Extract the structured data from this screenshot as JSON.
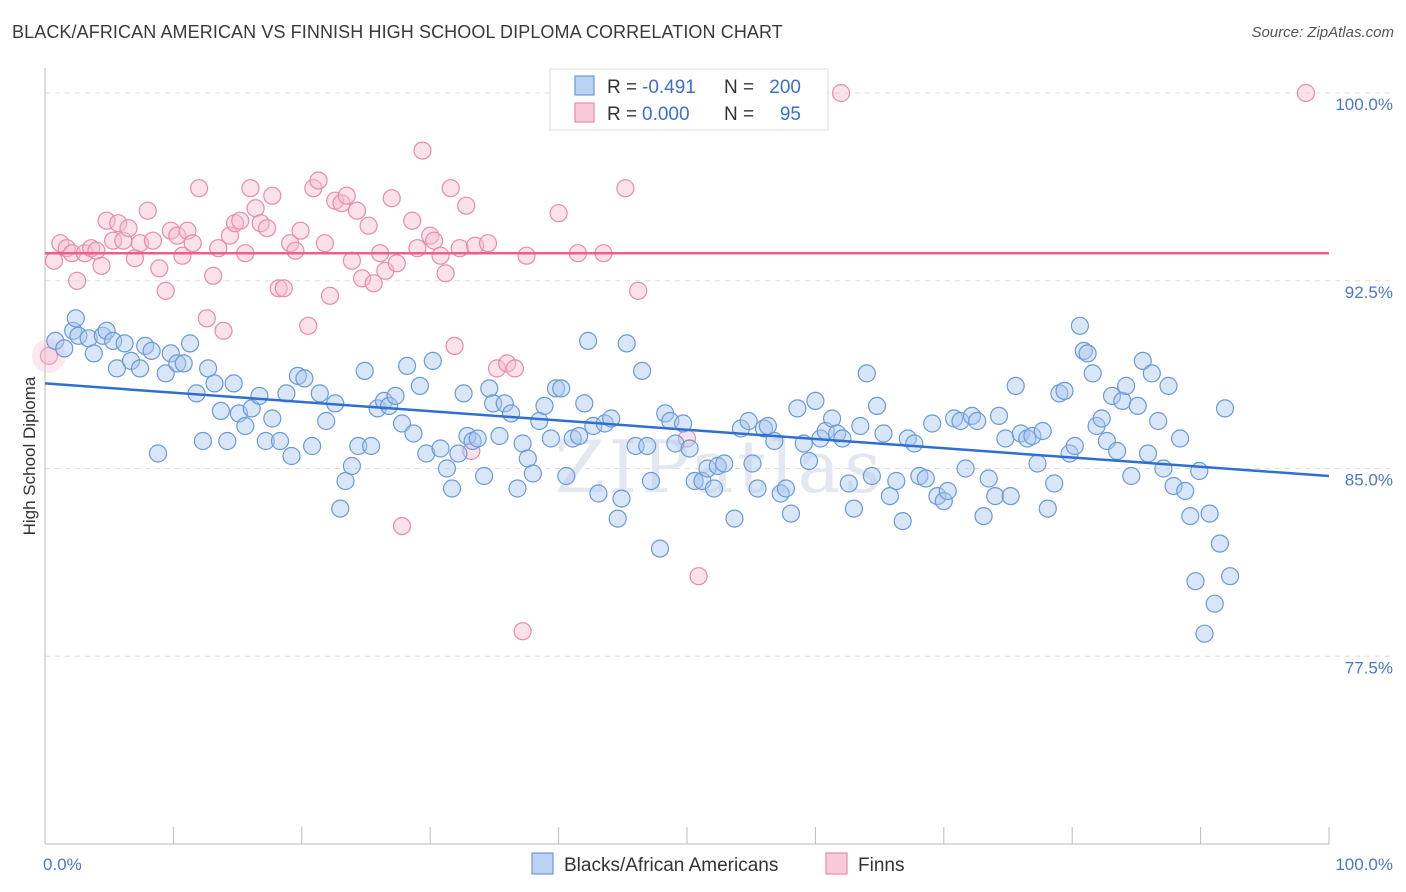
{
  "title": "BLACK/AFRICAN AMERICAN VS FINNISH HIGH SCHOOL DIPLOMA CORRELATION CHART",
  "source": "Source: ZipAtlas.com",
  "colors": {
    "blue_fill": "#a9c8f0",
    "blue_stroke": "#6a9ad8",
    "blue_line": "#2f6fd0",
    "pink_fill": "#f6bcd0",
    "pink_stroke": "#e98aab",
    "pink_line": "#e8608e",
    "grid": "#dddddd",
    "tick_label": "#4a78c8"
  },
  "chart_data": {
    "type": "scatter",
    "title": "BLACK/AFRICAN AMERICAN VS FINNISH HIGH SCHOOL DIPLOMA CORRELATION CHART",
    "xlabel": "",
    "ylabel": "High School Diploma",
    "xlim": [
      0,
      100
    ],
    "ylim": [
      70.0,
      101.0
    ],
    "x_tick_labels": [
      "0.0%",
      "100.0%"
    ],
    "y_ticks": [
      77.5,
      85.0,
      92.5,
      100.0
    ],
    "y_tick_labels": [
      "77.5%",
      "85.0%",
      "92.5%",
      "100.0%"
    ],
    "grid": true,
    "legend_position": "top-center",
    "legend": [
      {
        "name": "Blacks/African Americans",
        "r_label": "R =",
        "r_value": "-0.491",
        "n_label": "N =",
        "n_value": "200"
      },
      {
        "name": "Finns",
        "r_label": "R =",
        "r_value": "0.000",
        "n_label": "N =",
        "n_value": "95"
      }
    ],
    "series": [
      {
        "name": "Blacks/African Americans",
        "trend": {
          "x": [
            0,
            100
          ],
          "y": [
            88.4,
            84.7
          ]
        },
        "points": [
          [
            0.8,
            90.1
          ],
          [
            1.5,
            89.8
          ],
          [
            2.2,
            90.5
          ],
          [
            2.4,
            91.0
          ],
          [
            2.6,
            90.3
          ],
          [
            3.4,
            90.2
          ],
          [
            3.8,
            89.6
          ],
          [
            4.5,
            90.3
          ],
          [
            4.8,
            90.5
          ],
          [
            5.3,
            90.1
          ],
          [
            5.6,
            89.0
          ],
          [
            6.2,
            90.0
          ],
          [
            6.7,
            89.3
          ],
          [
            7.4,
            89.0
          ],
          [
            7.8,
            89.9
          ],
          [
            8.3,
            89.7
          ],
          [
            8.8,
            85.6
          ],
          [
            9.4,
            88.8
          ],
          [
            9.8,
            89.6
          ],
          [
            10.3,
            89.2
          ],
          [
            10.8,
            89.2
          ],
          [
            11.3,
            90.0
          ],
          [
            11.8,
            88.0
          ],
          [
            12.3,
            86.1
          ],
          [
            12.7,
            89.0
          ],
          [
            13.2,
            88.4
          ],
          [
            13.7,
            87.3
          ],
          [
            14.2,
            86.1
          ],
          [
            14.7,
            88.4
          ],
          [
            15.1,
            87.2
          ],
          [
            15.6,
            86.7
          ],
          [
            16.1,
            87.4
          ],
          [
            16.7,
            87.9
          ],
          [
            17.2,
            86.1
          ],
          [
            17.7,
            87.0
          ],
          [
            18.3,
            86.1
          ],
          [
            18.8,
            88.0
          ],
          [
            19.2,
            85.5
          ],
          [
            19.7,
            88.7
          ],
          [
            20.2,
            88.6
          ],
          [
            20.8,
            85.9
          ],
          [
            21.4,
            88.0
          ],
          [
            21.9,
            86.9
          ],
          [
            22.6,
            87.6
          ],
          [
            23.0,
            83.4
          ],
          [
            23.4,
            84.5
          ],
          [
            23.9,
            85.1
          ],
          [
            24.4,
            85.9
          ],
          [
            24.9,
            88.9
          ],
          [
            25.4,
            85.9
          ],
          [
            25.9,
            87.4
          ],
          [
            26.4,
            87.7
          ],
          [
            26.8,
            87.5
          ],
          [
            27.3,
            87.9
          ],
          [
            27.8,
            86.8
          ],
          [
            28.2,
            89.1
          ],
          [
            28.7,
            86.4
          ],
          [
            29.2,
            88.3
          ],
          [
            29.7,
            85.6
          ],
          [
            30.2,
            89.3
          ],
          [
            30.8,
            85.8
          ],
          [
            31.3,
            85.0
          ],
          [
            31.7,
            84.2
          ],
          [
            32.2,
            85.6
          ],
          [
            32.6,
            88.0
          ],
          [
            32.9,
            86.3
          ],
          [
            33.3,
            86.1
          ],
          [
            33.7,
            86.2
          ],
          [
            34.2,
            84.7
          ],
          [
            34.6,
            88.2
          ],
          [
            34.9,
            87.6
          ],
          [
            35.4,
            86.3
          ],
          [
            35.8,
            87.6
          ],
          [
            36.3,
            87.2
          ],
          [
            36.8,
            84.2
          ],
          [
            37.2,
            86.0
          ],
          [
            37.6,
            85.4
          ],
          [
            38.0,
            84.8
          ],
          [
            38.5,
            86.9
          ],
          [
            38.9,
            87.5
          ],
          [
            39.4,
            86.2
          ],
          [
            39.8,
            88.2
          ],
          [
            40.2,
            88.2
          ],
          [
            40.6,
            84.7
          ],
          [
            41.1,
            86.2
          ],
          [
            41.6,
            86.3
          ],
          [
            42.0,
            87.6
          ],
          [
            42.3,
            90.1
          ],
          [
            42.7,
            86.7
          ],
          [
            43.1,
            84.0
          ],
          [
            43.6,
            86.8
          ],
          [
            44.1,
            87.0
          ],
          [
            44.6,
            83.0
          ],
          [
            44.9,
            83.8
          ],
          [
            45.3,
            90.0
          ],
          [
            46.0,
            85.9
          ],
          [
            46.5,
            88.9
          ],
          [
            46.9,
            85.9
          ],
          [
            47.2,
            84.5
          ],
          [
            47.9,
            81.8
          ],
          [
            48.3,
            87.2
          ],
          [
            48.7,
            86.9
          ],
          [
            49.1,
            86.0
          ],
          [
            49.7,
            86.8
          ],
          [
            50.2,
            85.8
          ],
          [
            50.6,
            84.5
          ],
          [
            51.2,
            84.5
          ],
          [
            51.6,
            85.0
          ],
          [
            52.1,
            84.2
          ],
          [
            52.4,
            85.1
          ],
          [
            52.9,
            85.2
          ],
          [
            53.7,
            83.0
          ],
          [
            54.2,
            86.6
          ],
          [
            54.8,
            86.9
          ],
          [
            55.1,
            85.2
          ],
          [
            55.5,
            84.2
          ],
          [
            56.0,
            86.6
          ],
          [
            56.3,
            86.7
          ],
          [
            56.8,
            86.1
          ],
          [
            57.3,
            84.0
          ],
          [
            57.7,
            84.2
          ],
          [
            58.1,
            83.2
          ],
          [
            58.6,
            87.4
          ],
          [
            59.1,
            86.0
          ],
          [
            59.5,
            85.3
          ],
          [
            60.0,
            87.7
          ],
          [
            60.4,
            86.2
          ],
          [
            60.8,
            86.5
          ],
          [
            61.3,
            87.0
          ],
          [
            61.7,
            86.4
          ],
          [
            62.1,
            86.2
          ],
          [
            62.6,
            84.4
          ],
          [
            63.0,
            83.4
          ],
          [
            63.5,
            86.7
          ],
          [
            64.0,
            88.8
          ],
          [
            64.4,
            84.7
          ],
          [
            64.8,
            87.5
          ],
          [
            65.3,
            86.4
          ],
          [
            65.8,
            83.9
          ],
          [
            66.3,
            84.5
          ],
          [
            66.8,
            82.9
          ],
          [
            67.2,
            86.2
          ],
          [
            67.7,
            86.0
          ],
          [
            68.1,
            84.7
          ],
          [
            68.6,
            84.6
          ],
          [
            69.1,
            86.8
          ],
          [
            69.5,
            83.9
          ],
          [
            70.0,
            83.7
          ],
          [
            70.3,
            84.1
          ],
          [
            70.8,
            87.0
          ],
          [
            71.3,
            86.9
          ],
          [
            71.7,
            85.0
          ],
          [
            72.2,
            87.1
          ],
          [
            72.6,
            86.9
          ],
          [
            73.1,
            83.1
          ],
          [
            73.5,
            84.6
          ],
          [
            74.0,
            83.9
          ],
          [
            74.3,
            87.1
          ],
          [
            74.8,
            86.2
          ],
          [
            75.2,
            83.9
          ],
          [
            75.6,
            88.3
          ],
          [
            76.0,
            86.4
          ],
          [
            76.5,
            86.2
          ],
          [
            76.9,
            86.3
          ],
          [
            77.3,
            85.2
          ],
          [
            77.7,
            86.5
          ],
          [
            78.1,
            83.4
          ],
          [
            78.6,
            84.4
          ],
          [
            79.0,
            88.0
          ],
          [
            79.4,
            88.1
          ],
          [
            79.8,
            85.6
          ],
          [
            80.2,
            85.9
          ],
          [
            80.6,
            90.7
          ],
          [
            80.9,
            89.7
          ],
          [
            81.2,
            89.6
          ],
          [
            81.6,
            88.8
          ],
          [
            81.9,
            86.7
          ],
          [
            82.3,
            87.0
          ],
          [
            82.7,
            86.1
          ],
          [
            83.1,
            87.9
          ],
          [
            83.5,
            85.7
          ],
          [
            83.9,
            87.7
          ],
          [
            84.2,
            88.3
          ],
          [
            84.6,
            84.7
          ],
          [
            85.1,
            87.5
          ],
          [
            85.5,
            89.3
          ],
          [
            85.9,
            85.6
          ],
          [
            86.2,
            88.8
          ],
          [
            86.7,
            86.9
          ],
          [
            87.1,
            85.0
          ],
          [
            87.5,
            88.3
          ],
          [
            87.9,
            84.3
          ],
          [
            88.4,
            86.2
          ],
          [
            88.8,
            84.1
          ],
          [
            89.2,
            83.1
          ],
          [
            89.6,
            80.5
          ],
          [
            89.9,
            84.9
          ],
          [
            90.3,
            78.4
          ],
          [
            90.7,
            83.2
          ],
          [
            91.1,
            79.6
          ],
          [
            91.5,
            82.0
          ],
          [
            91.9,
            87.4
          ],
          [
            92.3,
            80.7
          ]
        ]
      },
      {
        "name": "Finns",
        "trend": {
          "x": [
            0,
            100
          ],
          "y": [
            93.6,
            93.6
          ]
        },
        "points": [
          [
            0.3,
            89.5
          ],
          [
            0.7,
            93.3
          ],
          [
            1.2,
            94.0
          ],
          [
            1.7,
            93.8
          ],
          [
            2.1,
            93.6
          ],
          [
            2.5,
            92.5
          ],
          [
            3.1,
            93.6
          ],
          [
            3.6,
            93.8
          ],
          [
            4.0,
            93.7
          ],
          [
            4.4,
            93.1
          ],
          [
            4.8,
            94.9
          ],
          [
            5.3,
            94.1
          ],
          [
            5.7,
            94.8
          ],
          [
            6.1,
            94.1
          ],
          [
            6.5,
            94.6
          ],
          [
            7.0,
            93.4
          ],
          [
            7.4,
            94.0
          ],
          [
            8.0,
            95.3
          ],
          [
            8.4,
            94.1
          ],
          [
            8.9,
            93.0
          ],
          [
            9.4,
            92.1
          ],
          [
            9.8,
            94.5
          ],
          [
            10.3,
            94.3
          ],
          [
            10.7,
            93.5
          ],
          [
            11.1,
            94.5
          ],
          [
            11.5,
            94.0
          ],
          [
            12.0,
            96.2
          ],
          [
            12.6,
            91.0
          ],
          [
            13.1,
            92.7
          ],
          [
            13.5,
            93.8
          ],
          [
            13.9,
            90.5
          ],
          [
            14.4,
            94.3
          ],
          [
            14.8,
            94.8
          ],
          [
            15.2,
            94.9
          ],
          [
            15.6,
            93.6
          ],
          [
            16.0,
            96.2
          ],
          [
            16.4,
            95.4
          ],
          [
            16.8,
            94.8
          ],
          [
            17.3,
            94.6
          ],
          [
            17.7,
            95.9
          ],
          [
            18.2,
            92.2
          ],
          [
            18.6,
            92.2
          ],
          [
            19.1,
            94.0
          ],
          [
            19.5,
            93.7
          ],
          [
            19.9,
            94.5
          ],
          [
            20.5,
            90.7
          ],
          [
            20.9,
            96.2
          ],
          [
            21.3,
            96.5
          ],
          [
            21.8,
            94.0
          ],
          [
            22.2,
            91.9
          ],
          [
            22.6,
            95.7
          ],
          [
            23.1,
            95.6
          ],
          [
            23.5,
            95.9
          ],
          [
            23.9,
            93.3
          ],
          [
            24.3,
            95.3
          ],
          [
            24.7,
            92.6
          ],
          [
            25.2,
            94.7
          ],
          [
            25.6,
            92.4
          ],
          [
            26.1,
            93.6
          ],
          [
            26.5,
            92.9
          ],
          [
            27.0,
            95.8
          ],
          [
            27.4,
            93.2
          ],
          [
            27.8,
            82.7
          ],
          [
            28.6,
            94.9
          ],
          [
            29.0,
            93.8
          ],
          [
            29.4,
            97.7
          ],
          [
            30.0,
            94.3
          ],
          [
            30.3,
            94.1
          ],
          [
            30.8,
            93.5
          ],
          [
            31.2,
            92.8
          ],
          [
            31.6,
            96.2
          ],
          [
            31.9,
            89.9
          ],
          [
            32.3,
            93.8
          ],
          [
            32.8,
            95.5
          ],
          [
            33.2,
            85.7
          ],
          [
            33.5,
            93.9
          ],
          [
            34.5,
            94.0
          ],
          [
            35.2,
            89.0
          ],
          [
            36.0,
            89.2
          ],
          [
            36.6,
            89.0
          ],
          [
            37.2,
            78.5
          ],
          [
            37.5,
            93.5
          ],
          [
            40.0,
            95.2
          ],
          [
            41.5,
            93.6
          ],
          [
            43.5,
            93.6
          ],
          [
            45.2,
            96.2
          ],
          [
            46.2,
            92.1
          ],
          [
            50.0,
            86.2
          ],
          [
            50.9,
            80.7
          ],
          [
            62.0,
            100.0
          ],
          [
            98.2,
            100.0
          ]
        ]
      }
    ]
  },
  "bottom_legend": [
    "Blacks/African Americans",
    "Finns"
  ],
  "watermark": "ZIPatlas"
}
